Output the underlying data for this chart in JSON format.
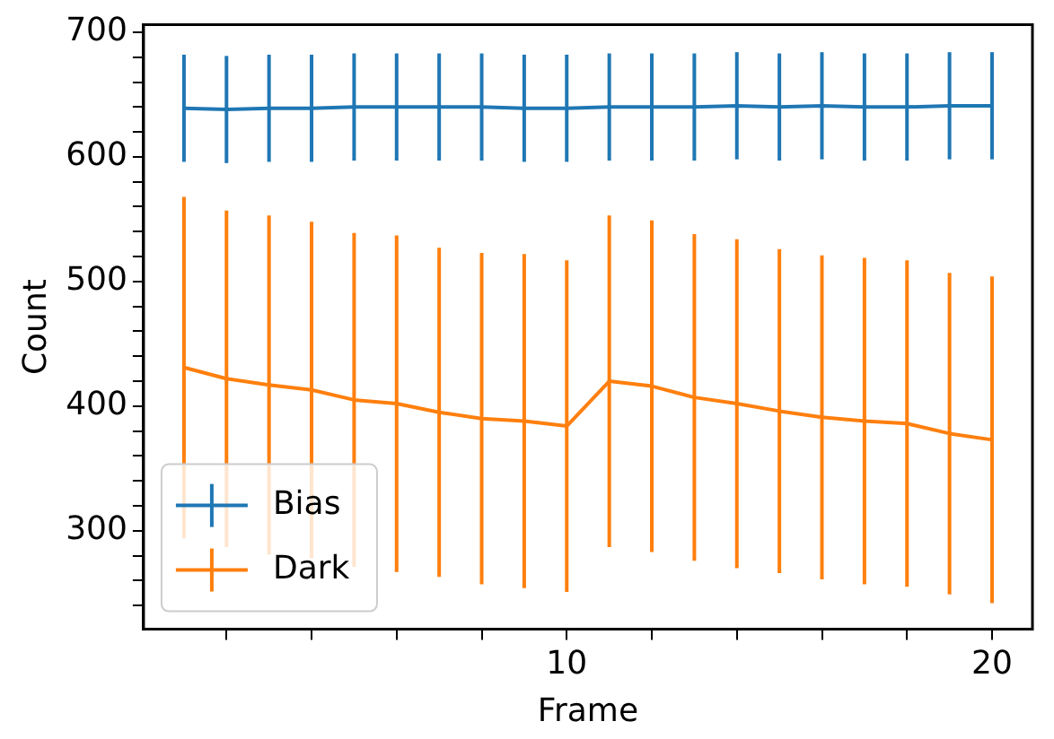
{
  "chart_data": {
    "type": "line",
    "xlabel": "Frame",
    "ylabel": "Count",
    "x": [
      1,
      2,
      3,
      4,
      5,
      6,
      7,
      8,
      9,
      10,
      11,
      12,
      13,
      14,
      15,
      16,
      17,
      18,
      19,
      20
    ],
    "series": [
      {
        "name": "Bias",
        "color": "#1f77b4",
        "values": [
          639,
          638,
          639,
          639,
          640,
          640,
          640,
          640,
          639,
          639,
          640,
          640,
          640,
          641,
          640,
          641,
          640,
          640,
          641,
          641
        ],
        "errors": [
          43,
          43,
          43,
          43,
          43,
          43,
          43,
          43,
          43,
          43,
          43,
          43,
          43,
          43,
          43,
          43,
          43,
          43,
          43,
          43
        ]
      },
      {
        "name": "Dark",
        "color": "#ff7f0e",
        "values": [
          431,
          422,
          417,
          413,
          405,
          402,
          395,
          390,
          388,
          384,
          420,
          416,
          407,
          402,
          396,
          391,
          388,
          386,
          378,
          373
        ],
        "errors": [
          137,
          135,
          136,
          135,
          134,
          135,
          132,
          133,
          134,
          133,
          133,
          133,
          131,
          132,
          130,
          130,
          131,
          131,
          129,
          131
        ]
      }
    ],
    "xlim": [
      0.05,
      20.95
    ],
    "ylim": [
      221,
      706
    ],
    "xticks": [
      {
        "value": 2,
        "label": null
      },
      {
        "value": 4,
        "label": null
      },
      {
        "value": 6,
        "label": null
      },
      {
        "value": 8,
        "label": null
      },
      10,
      {
        "value": 12,
        "label": null
      },
      {
        "value": 14,
        "label": null
      },
      {
        "value": 16,
        "label": null
      },
      {
        "value": 18,
        "label": null
      },
      20
    ],
    "yticks": [
      {
        "value": 240,
        "label": null
      },
      {
        "value": 260,
        "label": null
      },
      {
        "value": 280,
        "label": null
      },
      300,
      {
        "value": 320,
        "label": null
      },
      {
        "value": 340,
        "label": null
      },
      {
        "value": 360,
        "label": null
      },
      {
        "value": 380,
        "label": null
      },
      400,
      {
        "value": 420,
        "label": null
      },
      {
        "value": 440,
        "label": null
      },
      {
        "value": 460,
        "label": null
      },
      {
        "value": 480,
        "label": null
      },
      500,
      {
        "value": 520,
        "label": null
      },
      {
        "value": 540,
        "label": null
      },
      {
        "value": 560,
        "label": null
      },
      {
        "value": 580,
        "label": null
      },
      600,
      {
        "value": 620,
        "label": null
      },
      {
        "value": 640,
        "label": null
      },
      {
        "value": 660,
        "label": null
      },
      {
        "value": 680,
        "label": null
      },
      700
    ],
    "grid": false,
    "legend": "bottom left",
    "marker": "none",
    "line_style": "solid"
  }
}
